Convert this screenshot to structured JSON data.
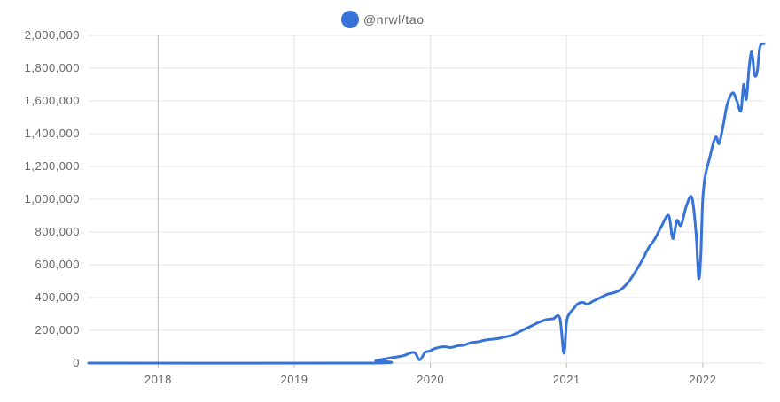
{
  "chart_data": {
    "type": "line",
    "title": "",
    "xlabel": "",
    "ylabel": "",
    "legend": {
      "placement": "top-center",
      "entries": [
        "@nrwl/tao"
      ]
    },
    "grid": true,
    "xlim": [
      2017.49,
      2022.45
    ],
    "ylim": [
      0,
      2000000
    ],
    "x_ticks": [
      2018,
      2019,
      2020,
      2021,
      2022
    ],
    "x_tick_labels": [
      "2018",
      "2019",
      "2020",
      "2021",
      "2022"
    ],
    "y_ticks": [
      0,
      200000,
      400000,
      600000,
      800000,
      1000000,
      1200000,
      1400000,
      1600000,
      1800000,
      2000000
    ],
    "y_tick_labels": [
      "0",
      "200,000",
      "400,000",
      "600,000",
      "800,000",
      "1,000,000",
      "1,200,000",
      "1,400,000",
      "1,600,000",
      "1,800,000",
      "2,000,000"
    ],
    "colors": {
      "series": "#3874d8",
      "grid": "#e6e6e6",
      "axis": "#bdbdbd",
      "label": "#666666"
    },
    "series": [
      {
        "name": "@nrwl/tao",
        "x": [
          2017.49,
          2019.55,
          2019.6,
          2019.7,
          2019.8,
          2019.88,
          2019.92,
          2019.96,
          2019.98,
          2020.0,
          2020.02,
          2020.06,
          2020.1,
          2020.15,
          2020.2,
          2020.25,
          2020.3,
          2020.35,
          2020.4,
          2020.45,
          2020.5,
          2020.55,
          2020.6,
          2020.65,
          2020.7,
          2020.75,
          2020.8,
          2020.85,
          2020.9,
          2020.95,
          2020.98,
          2021.0,
          2021.02,
          2021.05,
          2021.08,
          2021.12,
          2021.15,
          2021.2,
          2021.25,
          2021.3,
          2021.35,
          2021.4,
          2021.45,
          2021.5,
          2021.55,
          2021.6,
          2021.65,
          2021.7,
          2021.75,
          2021.78,
          2021.81,
          2021.84,
          2021.88,
          2021.92,
          2021.95,
          2021.97,
          2021.985,
          2022.0,
          2022.02,
          2022.05,
          2022.08,
          2022.1,
          2022.12,
          2022.15,
          2022.18,
          2022.22,
          2022.25,
          2022.28,
          2022.3,
          2022.32,
          2022.34,
          2022.36,
          2022.38,
          2022.4,
          2022.42,
          2022.45
        ],
        "values": [
          0,
          0,
          15000,
          30000,
          45000,
          65000,
          20000,
          65000,
          70000,
          75000,
          85000,
          95000,
          100000,
          95000,
          105000,
          110000,
          125000,
          130000,
          140000,
          145000,
          150000,
          160000,
          170000,
          190000,
          210000,
          230000,
          250000,
          265000,
          270000,
          275000,
          60000,
          250000,
          300000,
          330000,
          360000,
          370000,
          360000,
          380000,
          400000,
          420000,
          430000,
          450000,
          490000,
          550000,
          620000,
          700000,
          760000,
          840000,
          900000,
          760000,
          870000,
          840000,
          960000,
          1010000,
          800000,
          520000,
          650000,
          1000000,
          1150000,
          1250000,
          1350000,
          1380000,
          1340000,
          1450000,
          1580000,
          1650000,
          1600000,
          1540000,
          1700000,
          1610000,
          1800000,
          1900000,
          1760000,
          1780000,
          1930000,
          1950000
        ]
      }
    ]
  }
}
